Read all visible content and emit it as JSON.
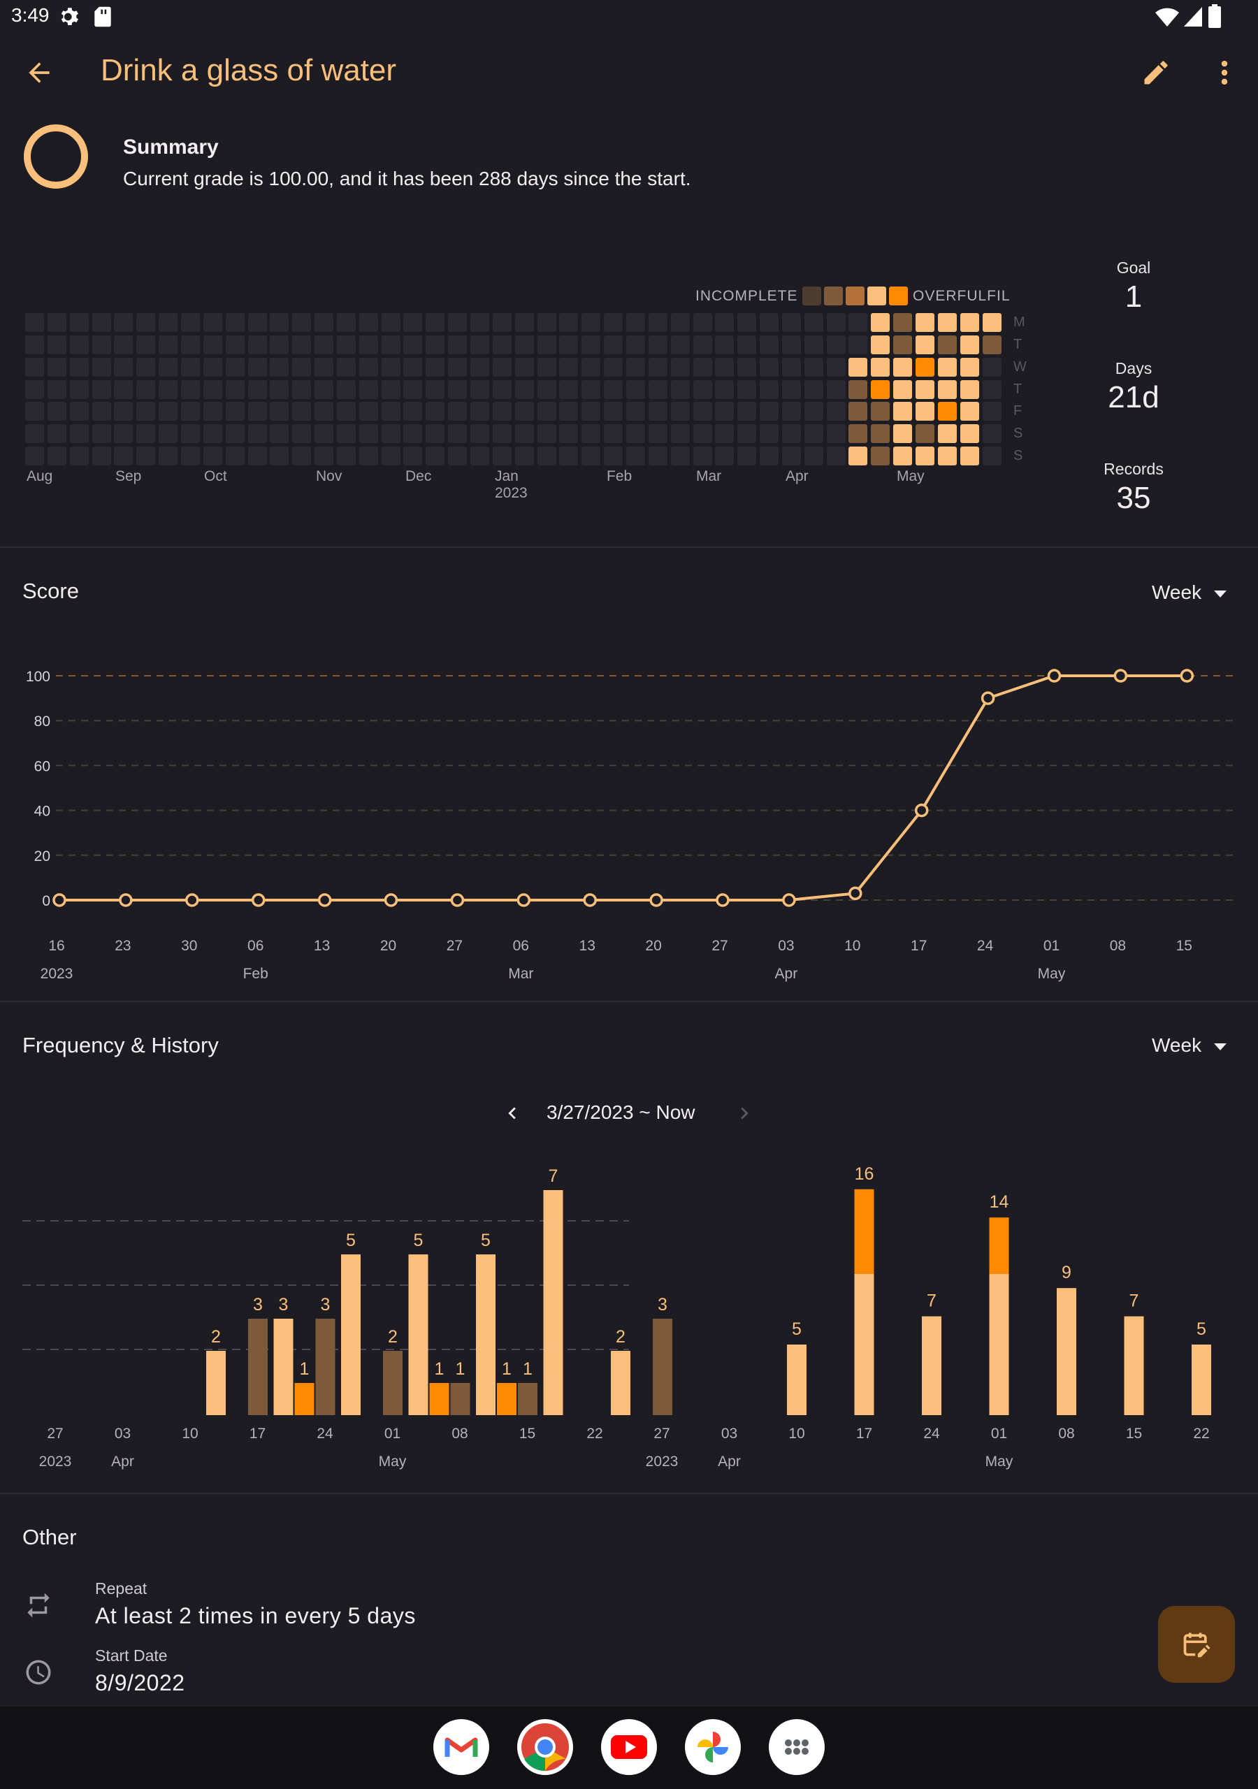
{
  "status_bar": {
    "time": "3:49"
  },
  "app_bar": {
    "title": "Drink a glass of water"
  },
  "summary": {
    "title": "Summary",
    "text": "Current grade is 100.00, and it has been 288 days since the start."
  },
  "heatmap": {
    "legend_incomplete": "INCOMPLETE",
    "legend_overfulfil": "OVERFULFIL",
    "months": [
      "Aug",
      "Sep",
      "Oct",
      "Nov",
      "Dec",
      "Jan 2023",
      "Feb",
      "Mar",
      "Apr",
      "May"
    ],
    "weekdays": [
      "M",
      "T",
      "W",
      "T",
      "F",
      "S",
      "S"
    ],
    "colors": {
      "empty": "#2a2930",
      "level1": "#4e3d2f",
      "level2": "#7d5a3a",
      "level3": "#b3723a",
      "level4": "#fbbf7c",
      "over": "#ff8a00"
    },
    "recent_weeks": [
      [
        "",
        "",
        "",
        "",
        "",
        "",
        ""
      ],
      [
        "",
        "",
        "level4",
        "level2",
        "level2",
        "level2",
        "level4"
      ],
      [
        "level4",
        "level4",
        "level4",
        "over",
        "level2",
        "level2",
        "level2"
      ],
      [
        "level2",
        "level2",
        "level4",
        "level4",
        "level4",
        "level4",
        "level4"
      ],
      [
        "level4",
        "level4",
        "over",
        "level4",
        "level4",
        "level2",
        "level4"
      ],
      [
        "level4",
        "level2",
        "level4",
        "level4",
        "over",
        "level4",
        "level4"
      ],
      [
        "level4",
        "level4",
        "level4",
        "level4",
        "level4",
        "level4",
        "level4"
      ],
      [
        "level4",
        "level2",
        "",
        "",
        "",
        "",
        ""
      ]
    ],
    "stats": [
      {
        "label": "Goal",
        "value": "1"
      },
      {
        "label": "Days",
        "value": "21d"
      },
      {
        "label": "Records",
        "value": "35"
      }
    ]
  },
  "score": {
    "title": "Score",
    "period": "Week",
    "chart_data": {
      "type": "line",
      "x": [
        "16",
        "23",
        "30",
        "06",
        "13",
        "20",
        "27",
        "06",
        "13",
        "20",
        "27",
        "03",
        "10",
        "17",
        "24",
        "01",
        "08",
        "15"
      ],
      "x_sublabels": [
        "2023",
        "",
        "",
        "Feb",
        "",
        "",
        "",
        "Mar",
        "",
        "",
        "",
        "Apr",
        "",
        "",
        "",
        "May",
        "",
        ""
      ],
      "values": [
        0,
        0,
        0,
        0,
        0,
        0,
        0,
        0,
        0,
        0,
        0,
        0,
        3,
        40,
        90,
        100,
        100,
        100
      ],
      "yticks": [
        0,
        20,
        40,
        60,
        80,
        100
      ],
      "ylim": [
        0,
        100
      ],
      "colors": {
        "line": "#fbbf7c",
        "grid": "#4a4036",
        "grid_top": "#8a5a2e"
      }
    }
  },
  "frequency": {
    "title": "Frequency & History",
    "period": "Week",
    "range": "3/27/2023 ~ Now",
    "chart_data": [
      {
        "type": "bar",
        "categories": [
          "27",
          "03",
          "10",
          "17",
          "24",
          "01",
          "08",
          "15",
          "22"
        ],
        "category_sublabels": [
          "2023",
          "Apr",
          "",
          "",
          "",
          "May",
          "",
          "",
          ""
        ],
        "series": [
          {
            "values": [
              0,
              0,
              2,
              3,
              5,
              5,
              5,
              7,
              2
            ],
            "color": "#fbbf7c"
          },
          {
            "values": [
              0,
              0,
              0,
              1,
              0,
              1,
              1,
              0,
              0
            ],
            "color": "#ff8a00"
          },
          {
            "values": [
              0,
              0,
              3,
              3,
              2,
              1,
              1,
              0,
              3
            ],
            "color": "#7d5a3a"
          }
        ]
      },
      {
        "type": "bar",
        "categories": [
          "27",
          "03",
          "10",
          "17",
          "24",
          "01",
          "08",
          "15",
          "22"
        ],
        "category_sublabels": [
          "2023",
          "Apr",
          "",
          "",
          "",
          "May",
          "",
          "",
          ""
        ],
        "values": [
          0,
          0,
          5,
          16,
          7,
          14,
          9,
          7,
          5
        ],
        "colors": {
          "base": "#fbbf7c",
          "over": "#ff8a00"
        }
      }
    ]
  },
  "other": {
    "title": "Other",
    "repeat_label": "Repeat",
    "repeat_value": "At least 2 times in every 5 days",
    "start_label": "Start Date",
    "start_value": "8/9/2022"
  },
  "icons": [
    "back-arrow-icon",
    "edit-pencil-icon",
    "more-vert-icon",
    "repeat-icon",
    "clock-icon",
    "calendar-edit-icon",
    "chevron-left-icon",
    "chevron-right-icon"
  ]
}
